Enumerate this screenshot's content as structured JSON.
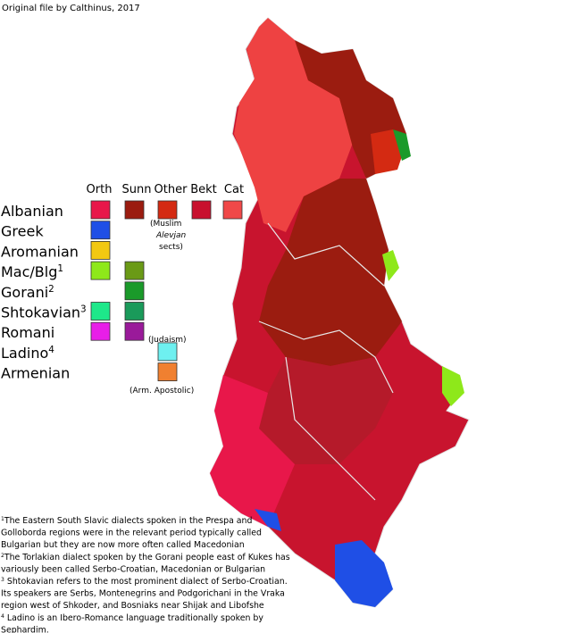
{
  "credit": "Original file by Calthinus, 2017",
  "legend": {
    "columns": [
      "Orth",
      "Sunn",
      "Other",
      "Bekt",
      "Cat"
    ],
    "rows": [
      {
        "label": "Albanian",
        "swatches": [
          "#e8174a",
          "#9b1c10",
          "#d42a12",
          "#c8102e",
          "#f04848"
        ]
      },
      {
        "label": "Greek",
        "swatches": [
          "#1f4fe6",
          null,
          null,
          null,
          null
        ]
      },
      {
        "label": "Aromanian",
        "swatches": [
          "#f2c811",
          null,
          null,
          null,
          null
        ]
      },
      {
        "label": "Mac/Blg",
        "sup": "1",
        "swatches": [
          "#8ee81a",
          "#6a9a16",
          null,
          null,
          null
        ]
      },
      {
        "label": "Gorani",
        "sup": "2",
        "swatches": [
          null,
          "#1a9a2a",
          null,
          null,
          null
        ]
      },
      {
        "label": "Shtokavian",
        "sup": "3",
        "swatches": [
          "#1ee88a",
          "#1a9a5a",
          null,
          null,
          null
        ]
      },
      {
        "label": "Romani",
        "swatches": [
          "#e81ee8",
          "#9a1a9a",
          null,
          null,
          null
        ]
      },
      {
        "label": "Ladino",
        "sup": "4",
        "swatches": [
          null,
          null,
          "#6ef0f0",
          null,
          null
        ]
      },
      {
        "label": "Armenian",
        "swatches": [
          null,
          null,
          "#f08030",
          null,
          null
        ]
      }
    ],
    "notes": {
      "muslim": [
        "(Muslim",
        "Alevjan",
        "sects)"
      ],
      "judaism": "(Judaism)",
      "armenian": "(Arm. Apostolic)"
    }
  },
  "footnotes": [
    {
      "marker": "1",
      "lines": [
        "The Eastern South Slavic dialects spoken in the Prespa and",
        "Golloborda regions were in the relevant period typically called",
        "Bulgarian but they are now more often called Macedonian"
      ]
    },
    {
      "marker": "2",
      "lines": [
        "The Torlakian dialect spoken by the Gorani people east of Kukes has",
        "variously been called Serbo-Croatian, Macedonian or Bulgarian"
      ]
    },
    {
      "marker": "3",
      "lines": [
        " Shtokavian refers to the most prominent dialect of Serbo-Croatian.",
        "Its speakers are Serbs, Montenegrins and Podgorichani in the Vraka",
        "region west of Shkoder, and Bosniaks near Shijak and Libofshe"
      ]
    },
    {
      "marker": "4",
      "lines": [
        " Ladino is an Ibero-Romance language traditionally spoken by",
        "Sephardim."
      ]
    }
  ]
}
